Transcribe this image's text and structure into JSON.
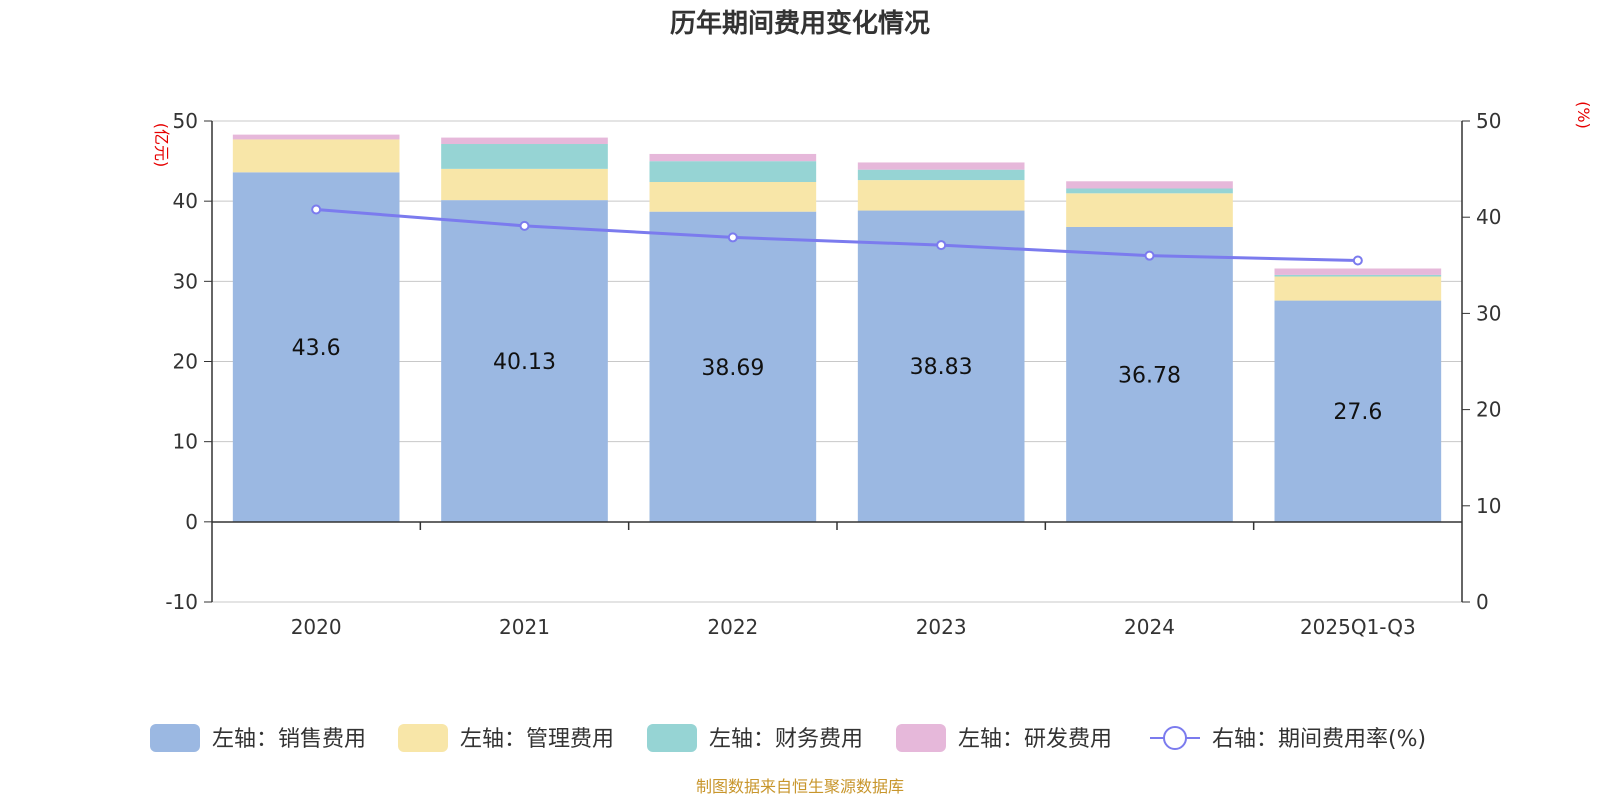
{
  "chart_data": {
    "type": "bar",
    "title": "历年期间费用变化情况",
    "categories": [
      "2020",
      "2021",
      "2022",
      "2023",
      "2024",
      "2025Q1-Q3"
    ],
    "left_axis": {
      "unit": "(亿元)",
      "ylim": [
        -10,
        50
      ],
      "ticks": [
        -10,
        0,
        10,
        20,
        30,
        40,
        50
      ]
    },
    "right_axis": {
      "unit": "(%)",
      "ylim": [
        0,
        50
      ],
      "ticks": [
        0,
        10,
        20,
        30,
        40,
        50
      ]
    },
    "series": [
      {
        "name": "左轴：销售费用",
        "axis": "left",
        "kind": "stacked-bar",
        "color": "#9bb8e2",
        "values": [
          43.6,
          40.13,
          38.69,
          38.83,
          36.78,
          27.6
        ],
        "labels": [
          "43.6",
          "40.13",
          "38.69",
          "38.83",
          "36.78",
          "27.6"
        ]
      },
      {
        "name": "左轴：管理费用",
        "axis": "left",
        "kind": "stacked-bar",
        "color": "#f8e6a8",
        "values": [
          4.1,
          3.9,
          3.7,
          3.8,
          4.2,
          3.0
        ]
      },
      {
        "name": "左轴：财务费用",
        "axis": "left",
        "kind": "stacked-bar",
        "color": "#96d4d4",
        "values": [
          0.0,
          3.1,
          2.6,
          1.3,
          0.6,
          0.2
        ]
      },
      {
        "name": "左轴：研发费用",
        "axis": "left",
        "kind": "stacked-bar",
        "color": "#e6b8da",
        "values": [
          0.6,
          0.8,
          0.9,
          0.9,
          0.9,
          0.8
        ]
      },
      {
        "name": "右轴：期间费用率(%)",
        "axis": "right",
        "kind": "line",
        "color": "#7b7bee",
        "values": [
          40.8,
          39.1,
          37.9,
          37.1,
          36.0,
          35.5
        ]
      }
    ],
    "grid": true,
    "legend_position": "bottom"
  },
  "footer": {
    "source": "制图数据来自恒生聚源数据库"
  }
}
